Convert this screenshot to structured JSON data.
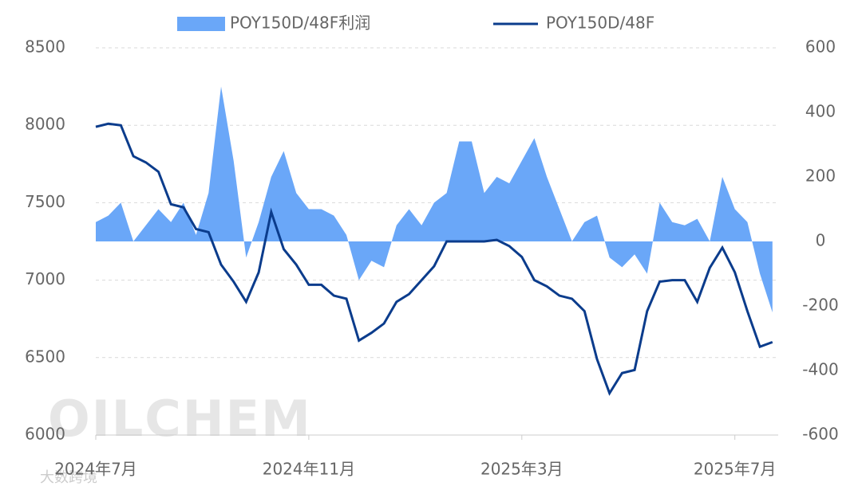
{
  "chart_data": {
    "type": "area-line",
    "categories": [
      "2024年7月",
      null,
      null,
      null,
      null,
      null,
      null,
      null,
      null,
      null,
      null,
      null,
      null,
      null,
      null,
      null,
      null,
      "2024年11月",
      null,
      null,
      null,
      null,
      null,
      null,
      null,
      null,
      null,
      null,
      null,
      null,
      null,
      null,
      null,
      null,
      "2025年3月",
      null,
      null,
      null,
      null,
      null,
      null,
      null,
      null,
      null,
      null,
      null,
      null,
      null,
      null,
      null,
      null,
      "2025年7月",
      null,
      null,
      null
    ],
    "series": [
      {
        "name": "POY150D/48F利润",
        "color": "#6aa7f8",
        "axis": "y2",
        "kind": "area",
        "values": [
          60,
          80,
          120,
          0,
          50,
          100,
          60,
          120,
          20,
          150,
          480,
          250,
          -50,
          60,
          200,
          280,
          150,
          100,
          100,
          80,
          20,
          -120,
          -60,
          -80,
          50,
          100,
          50,
          120,
          150,
          310,
          310,
          150,
          200,
          180,
          250,
          320,
          200,
          100,
          0,
          60,
          80,
          -50,
          -80,
          -40,
          -100,
          120,
          60,
          50,
          70,
          0,
          200,
          100,
          60,
          -100,
          -220
        ]
      },
      {
        "name": "POY150D/48F",
        "color": "#0b3c8c",
        "axis": "y",
        "kind": "line",
        "values": [
          7990,
          8010,
          8000,
          7800,
          7760,
          7700,
          7490,
          7470,
          7330,
          7310,
          7100,
          6990,
          6860,
          7050,
          7440,
          7200,
          7100,
          6970,
          6970,
          6900,
          6880,
          6610,
          6660,
          6720,
          6860,
          6910,
          7000,
          7090,
          7250,
          7250,
          7250,
          7250,
          7260,
          7220,
          7150,
          7000,
          6960,
          6900,
          6880,
          6800,
          6490,
          6270,
          6400,
          6420,
          6800,
          6990,
          7000,
          7000,
          6860,
          7080,
          7210,
          7050,
          6800,
          6570,
          6600
        ]
      }
    ],
    "ylim": [
      6000,
      8500
    ],
    "yticks": [
      6000,
      6500,
      7000,
      7500,
      8000,
      8500
    ],
    "y2lim": [
      -600,
      600
    ],
    "y2ticks": [
      -600,
      -400,
      -200,
      0,
      200,
      400,
      600
    ],
    "grid": true,
    "legend": "top",
    "watermark": "OILCHEM",
    "logo": "大数跨境"
  }
}
